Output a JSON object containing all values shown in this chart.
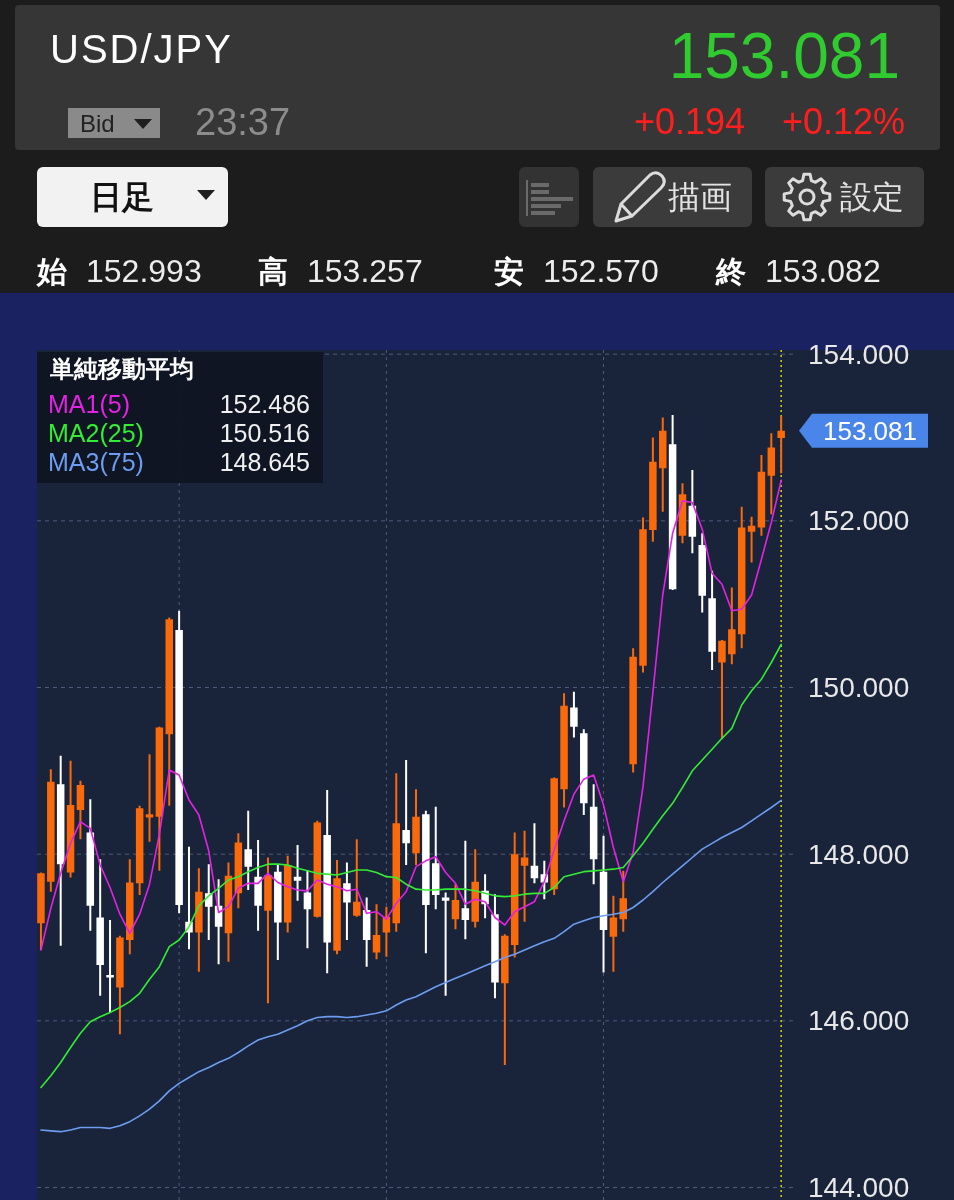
{
  "chart_data": {
    "type": "candlestick",
    "title": "USD/JPY",
    "legend_title": "単純移動平均",
    "annotations": [
      "153.081",
      "+0.194",
      "+0.12%",
      "Bid",
      "23:37",
      "日足",
      "描画",
      "設定",
      "始",
      "152.993",
      "高",
      "153.257",
      "安",
      "152.570",
      "終",
      "153.082",
      "152.486",
      "150.516",
      "148.645",
      "153.081"
    ],
    "categories": [
      null,
      null,
      null,
      null,
      null,
      null,
      null,
      null,
      null,
      null,
      null,
      null,
      null,
      null,
      null,
      null,
      null,
      null,
      null,
      null,
      null,
      null,
      null,
      null,
      null,
      null,
      null,
      null,
      null,
      null,
      null,
      null,
      null,
      null,
      null,
      null,
      null,
      null,
      null,
      null,
      null,
      null,
      null,
      null,
      null,
      null,
      null,
      null,
      null,
      null,
      null,
      null,
      null,
      null,
      null,
      null,
      null,
      null,
      null,
      null,
      null,
      null,
      null,
      null,
      null,
      null,
      null,
      null,
      null,
      null,
      null,
      null,
      null,
      null,
      null,
      null
    ],
    "ohlc": [
      [
        147.17,
        147.78,
        146.85,
        147.77
      ],
      [
        147.67,
        149.02,
        147.55,
        148.87
      ],
      [
        148.84,
        149.18,
        146.9,
        147.88
      ],
      [
        147.78,
        149.12,
        147.72,
        148.59
      ],
      [
        148.53,
        148.88,
        148.18,
        148.83
      ],
      [
        148.26,
        148.66,
        147.08,
        147.38
      ],
      [
        147.24,
        147.94,
        146.3,
        146.67
      ],
      [
        146.55,
        147.21,
        146.1,
        146.52
      ],
      [
        146.4,
        147.02,
        145.84,
        147.0
      ],
      [
        146.97,
        147.94,
        146.8,
        147.66
      ],
      [
        147.65,
        148.58,
        147.51,
        148.55
      ],
      [
        148.44,
        149.2,
        148.15,
        148.48
      ],
      [
        148.45,
        149.53,
        147.8,
        149.52
      ],
      [
        149.44,
        150.84,
        148.58,
        150.82
      ],
      [
        150.69,
        150.92,
        147.29,
        147.39
      ],
      [
        147.19,
        148.09,
        146.86,
        147.06
      ],
      [
        147.06,
        147.83,
        146.59,
        147.55
      ],
      [
        147.53,
        147.88,
        146.97,
        147.37
      ],
      [
        147.38,
        147.7,
        146.68,
        147.13
      ],
      [
        147.05,
        147.9,
        146.71,
        147.74
      ],
      [
        147.53,
        148.25,
        147.35,
        148.14
      ],
      [
        148.06,
        148.52,
        147.57,
        147.85
      ],
      [
        147.73,
        148.17,
        147.08,
        147.38
      ],
      [
        147.32,
        147.96,
        146.21,
        147.75
      ],
      [
        147.79,
        147.87,
        146.73,
        147.18
      ],
      [
        147.18,
        147.98,
        147.06,
        147.87
      ],
      [
        147.73,
        148.11,
        147.44,
        147.68
      ],
      [
        147.54,
        147.81,
        146.87,
        147.34
      ],
      [
        147.25,
        148.4,
        147.24,
        148.38
      ],
      [
        148.23,
        148.77,
        146.57,
        146.94
      ],
      [
        146.84,
        147.93,
        146.8,
        147.71
      ],
      [
        147.65,
        147.9,
        146.97,
        147.42
      ],
      [
        147.26,
        148.18,
        147.25,
        147.43
      ],
      [
        147.33,
        147.48,
        146.65,
        146.97
      ],
      [
        146.82,
        147.4,
        146.74,
        147.03
      ],
      [
        147.06,
        147.37,
        146.77,
        147.25
      ],
      [
        147.17,
        148.97,
        147.07,
        148.37
      ],
      [
        148.29,
        149.13,
        147.87,
        148.13
      ],
      [
        148.01,
        148.78,
        147.87,
        148.45
      ],
      [
        148.48,
        148.52,
        146.81,
        147.39
      ],
      [
        147.89,
        148.57,
        147.34,
        147.51
      ],
      [
        147.48,
        147.54,
        146.3,
        147.44
      ],
      [
        147.22,
        147.64,
        147.1,
        147.45
      ],
      [
        147.35,
        148.16,
        146.98,
        147.21
      ],
      [
        147.19,
        148.06,
        147.12,
        147.67
      ],
      [
        147.56,
        147.76,
        147.23,
        147.4
      ],
      [
        147.28,
        147.52,
        146.27,
        146.46
      ],
      [
        146.45,
        147.04,
        145.47,
        147.02
      ],
      [
        146.91,
        148.26,
        146.76,
        148.0
      ],
      [
        147.86,
        148.28,
        147.19,
        147.96
      ],
      [
        147.86,
        148.37,
        147.65,
        147.71
      ],
      [
        147.76,
        147.92,
        147.46,
        147.66
      ],
      [
        147.58,
        148.92,
        147.51,
        148.91
      ],
      [
        148.78,
        149.93,
        148.56,
        149.78
      ],
      [
        149.76,
        149.95,
        149.4,
        149.53
      ],
      [
        149.45,
        149.5,
        148.47,
        148.61
      ],
      [
        148.57,
        148.84,
        147.64,
        147.94
      ],
      [
        147.79,
        148.22,
        146.58,
        147.09
      ],
      [
        147.01,
        147.5,
        146.59,
        147.24
      ],
      [
        147.22,
        147.8,
        147.07,
        147.47
      ],
      [
        149.08,
        150.47,
        148.98,
        150.37
      ],
      [
        150.26,
        152.04,
        150.18,
        151.9
      ],
      [
        151.89,
        153.0,
        151.75,
        152.71
      ],
      [
        152.63,
        153.24,
        152.11,
        153.08
      ],
      [
        152.92,
        153.27,
        151.17,
        151.18
      ],
      [
        151.82,
        152.45,
        151.73,
        152.32
      ],
      [
        152.18,
        152.61,
        151.61,
        151.81
      ],
      [
        151.71,
        151.85,
        150.9,
        151.1
      ],
      [
        151.07,
        151.4,
        150.21,
        150.43
      ],
      [
        150.3,
        150.57,
        149.38,
        150.56
      ],
      [
        150.4,
        151.2,
        150.28,
        150.7
      ],
      [
        150.64,
        152.17,
        150.47,
        151.92
      ],
      [
        151.87,
        152.05,
        151.5,
        151.94
      ],
      [
        151.92,
        152.79,
        151.82,
        152.59
      ],
      [
        152.54,
        153.05,
        152.08,
        152.88
      ],
      [
        152.993,
        153.257,
        152.57,
        153.082
      ]
    ],
    "colors": [
      "#fa6a0a",
      "#fa6a0a",
      "#ffffff",
      "#fa6a0a",
      "#fa6a0a",
      "#ffffff",
      "#ffffff",
      "#ffffff",
      "#fa6a0a",
      "#fa6a0a",
      "#fa6a0a",
      "#fa6a0a",
      "#fa6a0a",
      "#fa6a0a",
      "#ffffff",
      "#ffffff",
      "#fa6a0a",
      "#ffffff",
      "#ffffff",
      "#fa6a0a",
      "#fa6a0a",
      "#ffffff",
      "#ffffff",
      "#fa6a0a",
      "#ffffff",
      "#fa6a0a",
      "#ffffff",
      "#ffffff",
      "#fa6a0a",
      "#ffffff",
      "#fa6a0a",
      "#ffffff",
      "#fa6a0a",
      "#ffffff",
      "#fa6a0a",
      "#fa6a0a",
      "#fa6a0a",
      "#ffffff",
      "#fa6a0a",
      "#ffffff",
      "#ffffff",
      "#ffffff",
      "#fa6a0a",
      "#ffffff",
      "#fa6a0a",
      "#ffffff",
      "#ffffff",
      "#fa6a0a",
      "#fa6a0a",
      "#fa6a0a",
      "#ffffff",
      "#ffffff",
      "#fa6a0a",
      "#fa6a0a",
      "#ffffff",
      "#ffffff",
      "#ffffff",
      "#ffffff",
      "#fa6a0a",
      "#fa6a0a",
      "#fa6a0a",
      "#fa6a0a",
      "#fa6a0a",
      "#fa6a0a",
      "#ffffff",
      "#fa6a0a",
      "#ffffff",
      "#ffffff",
      "#ffffff",
      "#fa6a0a",
      "#fa6a0a",
      "#fa6a0a",
      "#fa6a0a",
      "#fa6a0a",
      "#fa6a0a",
      "#fa6a0a"
    ],
    "series": [
      {
        "name": "MA1(5)",
        "type": "line",
        "color": "#e323e3",
        "values": [
          146.85,
          147.35,
          147.77,
          148.13,
          148.39,
          148.31,
          147.87,
          147.6,
          147.28,
          147.05,
          147.28,
          147.64,
          148.24,
          149.01,
          148.95,
          148.65,
          148.47,
          148.04,
          147.3,
          147.37,
          147.59,
          147.65,
          147.65,
          147.77,
          147.66,
          147.61,
          147.57,
          147.56,
          147.69,
          147.64,
          147.61,
          147.56,
          147.58,
          147.29,
          147.31,
          147.22,
          147.41,
          147.55,
          147.85,
          147.92,
          147.97,
          147.78,
          147.65,
          147.4,
          147.46,
          147.43,
          147.24,
          147.15,
          147.31,
          147.37,
          147.43,
          147.67,
          148.05,
          148.4,
          148.72,
          148.9,
          148.95,
          148.59,
          148.08,
          147.67,
          148.02,
          148.81,
          149.94,
          151.11,
          151.85,
          152.24,
          152.22,
          151.9,
          151.37,
          151.24,
          150.92,
          150.94,
          151.11,
          151.54,
          151.98,
          152.486
        ]
      },
      {
        "name": "MA2(25)",
        "type": "line",
        "color": "#35ec35",
        "values": [
          145.2,
          145.34,
          145.5,
          145.68,
          145.85,
          145.99,
          146.05,
          146.1,
          146.16,
          146.23,
          146.33,
          146.5,
          146.65,
          146.89,
          146.97,
          147.13,
          147.38,
          147.5,
          147.59,
          147.69,
          147.73,
          147.79,
          147.84,
          147.88,
          147.88,
          147.87,
          147.83,
          147.8,
          147.77,
          147.76,
          147.75,
          147.78,
          147.81,
          147.81,
          147.78,
          147.73,
          147.72,
          147.64,
          147.58,
          147.57,
          147.57,
          147.58,
          147.58,
          147.58,
          147.56,
          147.53,
          147.5,
          147.49,
          147.5,
          147.52,
          147.53,
          147.53,
          147.6,
          147.73,
          147.76,
          147.79,
          147.8,
          147.81,
          147.82,
          147.84,
          147.98,
          148.13,
          148.3,
          148.46,
          148.61,
          148.8,
          149.0,
          149.13,
          149.26,
          149.39,
          149.51,
          149.79,
          149.96,
          150.1,
          150.3,
          150.516
        ]
      },
      {
        "name": "MA3(75)",
        "type": "line",
        "color": "#6d9df0",
        "values": [
          144.69,
          144.68,
          144.67,
          144.69,
          144.72,
          144.72,
          144.72,
          144.71,
          144.74,
          144.79,
          144.86,
          144.94,
          145.04,
          145.16,
          145.25,
          145.32,
          145.39,
          145.44,
          145.5,
          145.55,
          145.62,
          145.7,
          145.77,
          145.81,
          145.84,
          145.89,
          145.94,
          146.0,
          146.04,
          146.05,
          146.05,
          146.04,
          146.05,
          146.07,
          146.09,
          146.12,
          146.19,
          146.25,
          146.29,
          146.35,
          146.41,
          146.46,
          146.51,
          146.56,
          146.61,
          146.66,
          146.71,
          146.76,
          146.8,
          146.85,
          146.9,
          146.95,
          146.99,
          147.07,
          147.16,
          147.2,
          147.24,
          147.26,
          147.28,
          147.3,
          147.36,
          147.45,
          147.55,
          147.66,
          147.76,
          147.86,
          147.96,
          148.06,
          148.13,
          148.2,
          148.26,
          148.32,
          148.4,
          148.48,
          148.56,
          148.645
        ]
      }
    ],
    "ylim": [
      143.85,
      154.05
    ],
    "yticks": [
      {
        "value": 144,
        "label": "144.000"
      },
      {
        "value": 146,
        "label": "146.000"
      },
      {
        "value": 148,
        "label": "148.000"
      },
      {
        "value": 150,
        "label": "150.000"
      },
      {
        "value": 152,
        "label": "152.000"
      },
      {
        "value": 154,
        "label": "154.000"
      }
    ],
    "grid": true,
    "legend": "top left",
    "tick_labels": "y"
  }
}
